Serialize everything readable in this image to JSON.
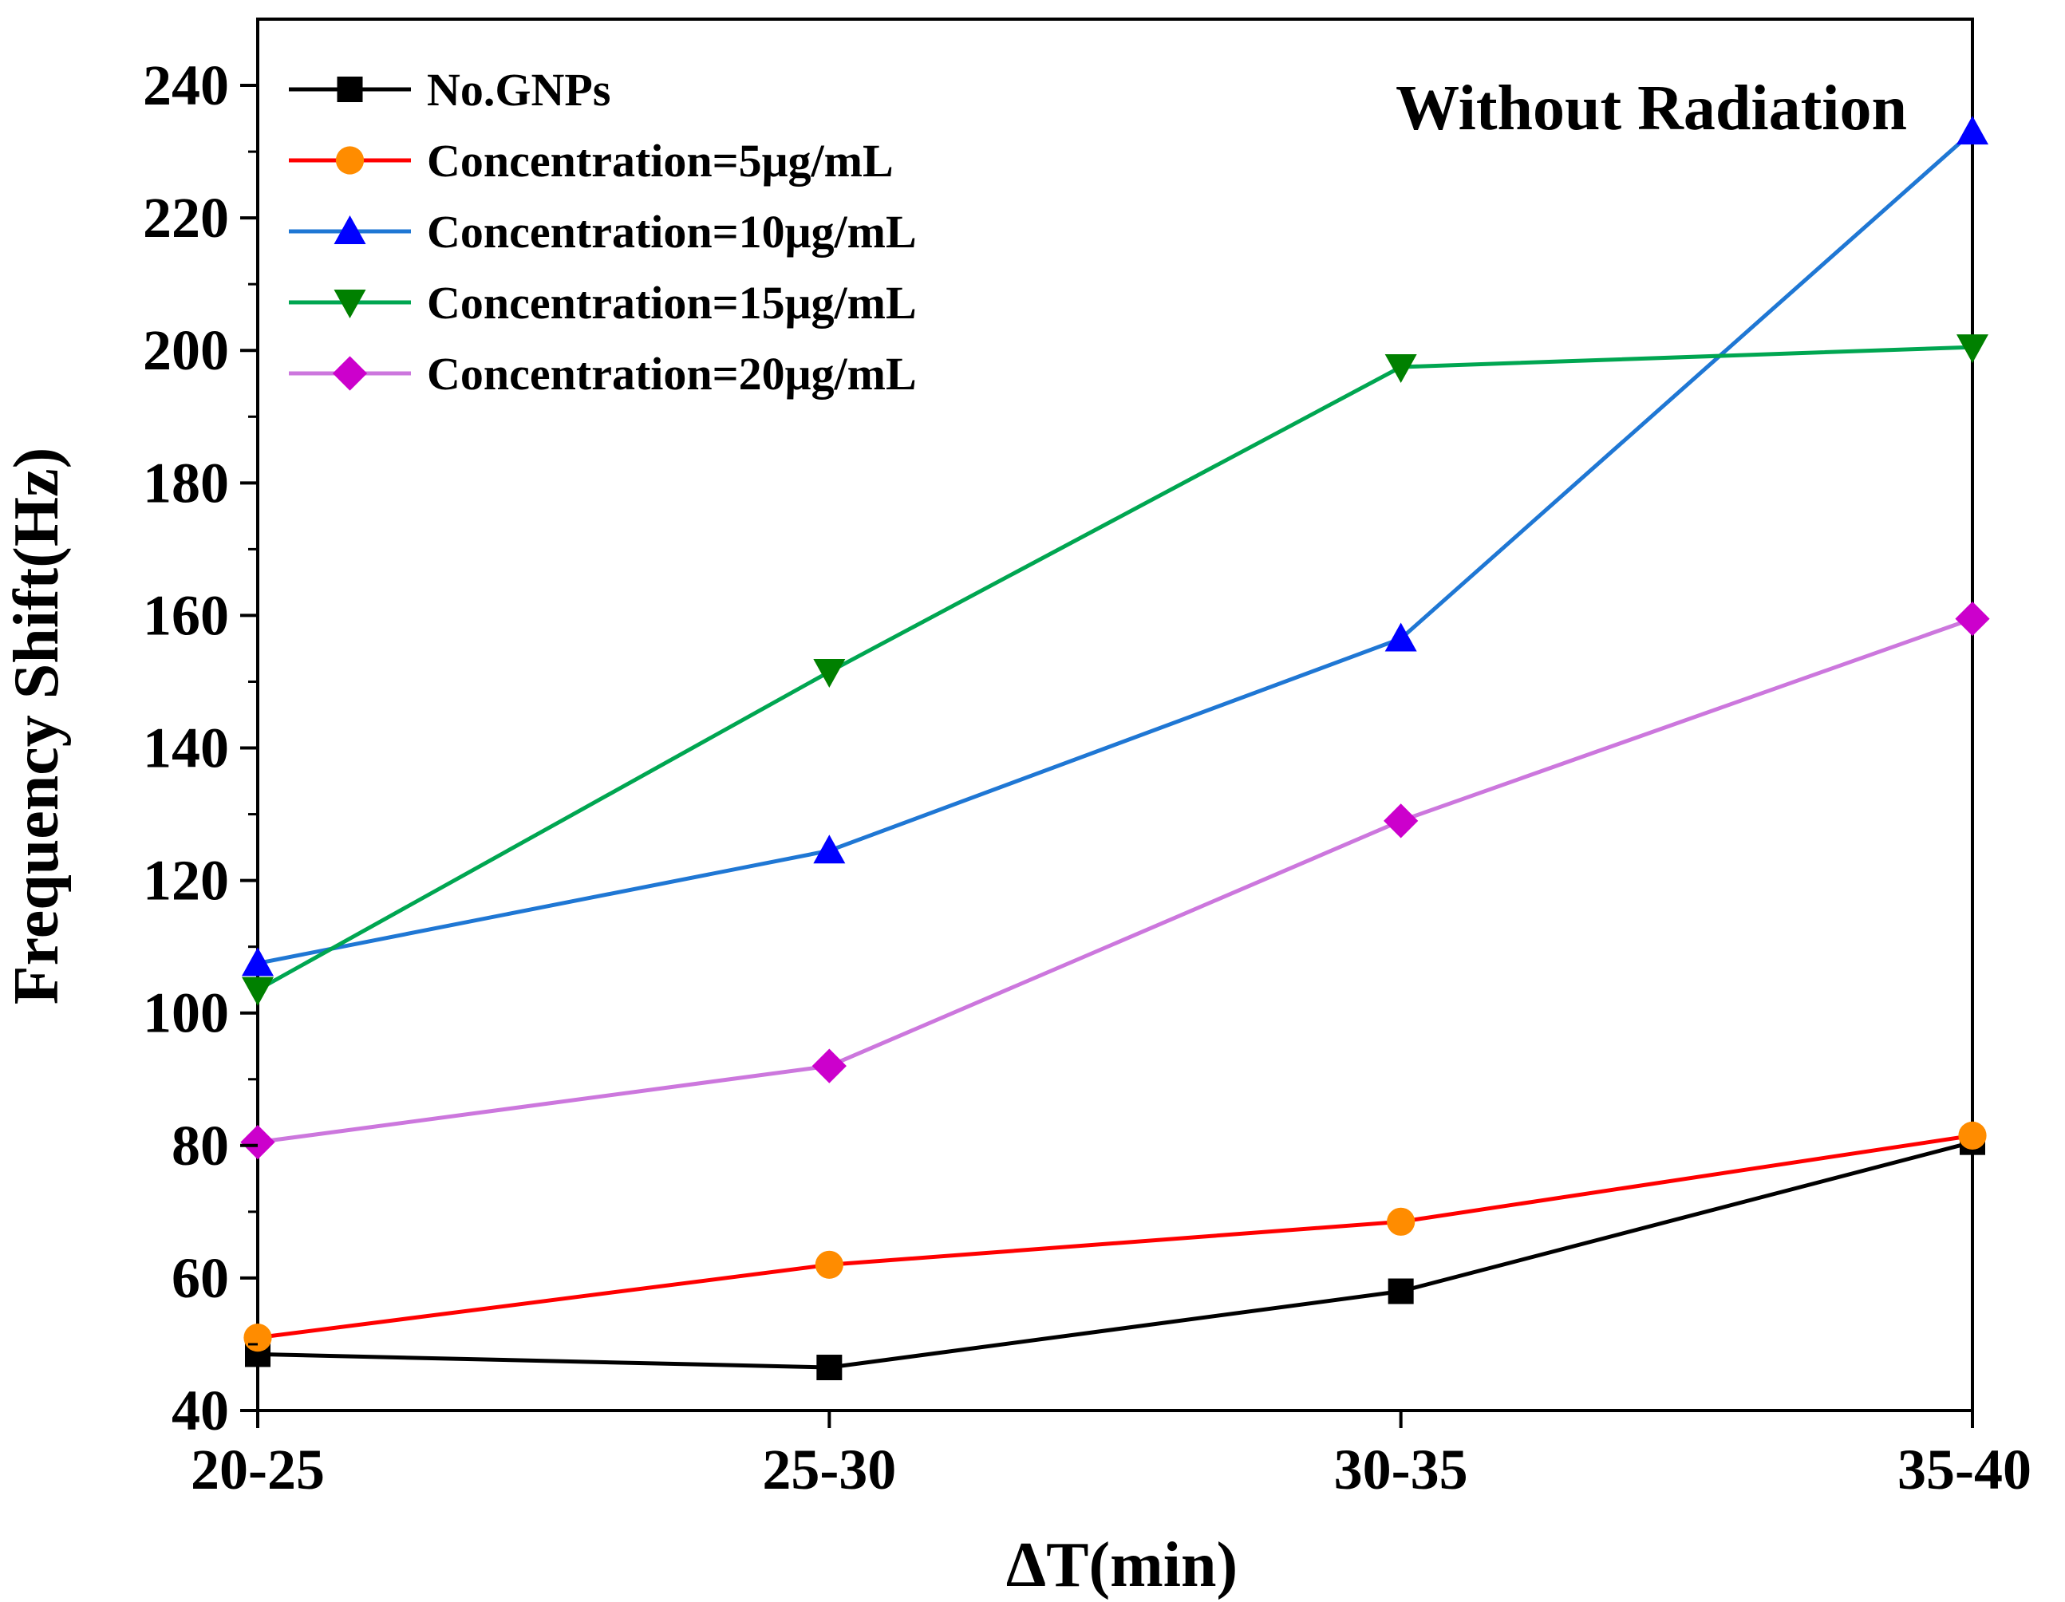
{
  "chart_data": {
    "type": "line",
    "title": "",
    "annotation": "Without Radiation",
    "xlabel": "ΔT(min)",
    "ylabel": "Frequency Shift(Hz)",
    "categories": [
      "20-25",
      "25-30",
      "30-35",
      "35-40"
    ],
    "ylim": [
      40,
      250
    ],
    "yticks": [
      40,
      60,
      80,
      100,
      120,
      140,
      160,
      180,
      200,
      220,
      240
    ],
    "grid": false,
    "legend_position": "top-left",
    "series": [
      {
        "name": "No.GNPs",
        "color": "#000000",
        "marker": "square",
        "values": [
          48.5,
          46.5,
          58,
          80.5
        ]
      },
      {
        "name": "Concentration=5μg/mL",
        "color": "#ff0000",
        "line_color": "#ff0000",
        "marker_color": "#ff8c00",
        "marker": "circle",
        "values": [
          51,
          62,
          68.5,
          81.5
        ]
      },
      {
        "name": "Concentration=10μg/mL",
        "color": "#0066cc",
        "line_color": "#1f77d4",
        "marker_color": "#0000ff",
        "marker": "triangle-up",
        "values": [
          107.5,
          124.5,
          156.5,
          233
        ]
      },
      {
        "name": "Concentration=15μg/mL",
        "color": "#00a050",
        "line_color": "#00a651",
        "marker_color": "#008000",
        "marker": "triangle-down",
        "values": [
          103.5,
          151.5,
          197.5,
          200.5
        ]
      },
      {
        "name": "Concentration=20μg/mL",
        "color": "#cc66cc",
        "line_color": "#cc77dd",
        "marker_color": "#cc00cc",
        "marker": "diamond",
        "values": [
          80.5,
          92,
          129,
          159.5
        ]
      }
    ]
  }
}
